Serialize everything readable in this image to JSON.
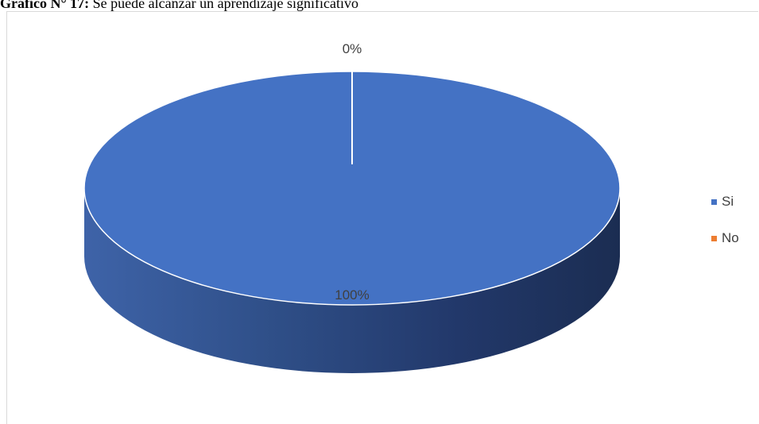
{
  "caption": {
    "bold": "Gráfico N° 17:",
    "text": " Se puede alcanzar un aprendizaje significativo"
  },
  "chart_data": {
    "type": "pie",
    "categories": [
      "Si",
      "No"
    ],
    "values": [
      100,
      0
    ],
    "labels": [
      "100%",
      "0%"
    ],
    "colors": [
      "#4472C4",
      "#ED7D31"
    ],
    "legend_position": "right",
    "style": "3d"
  }
}
